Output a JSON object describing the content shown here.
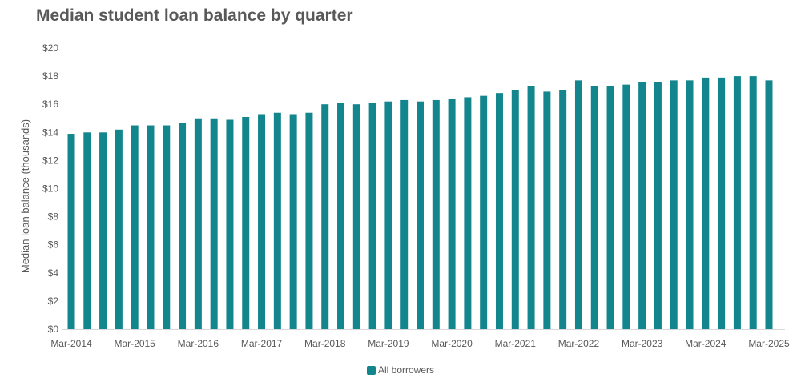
{
  "chart_data": {
    "type": "bar",
    "title": "Median student loan balance by quarter",
    "ylabel": "Median loan balance (thousands)",
    "xlabel": "",
    "ylim": [
      0,
      20
    ],
    "y_ticks": [
      "$0",
      "$2",
      "$4",
      "$6",
      "$8",
      "$10",
      "$12",
      "$14",
      "$16",
      "$18",
      "$20"
    ],
    "x_tick_labels": [
      "Mar-2014",
      "Mar-2015",
      "Mar-2016",
      "Mar-2017",
      "Mar-2018",
      "Mar-2019",
      "Mar-2020",
      "Mar-2021",
      "Mar-2022",
      "Mar-2023",
      "Mar-2024",
      "Mar-2025"
    ],
    "grid": false,
    "legend_position": "bottom",
    "series": [
      {
        "name": "All borrowers",
        "color": "#12868c",
        "values": [
          13.9,
          14.0,
          14.0,
          14.2,
          14.5,
          14.5,
          14.5,
          14.7,
          15.0,
          15.0,
          14.9,
          15.1,
          15.3,
          15.4,
          15.3,
          15.4,
          16.0,
          16.1,
          16.0,
          16.1,
          16.2,
          16.3,
          16.2,
          16.3,
          16.4,
          16.5,
          16.6,
          16.8,
          17.0,
          17.3,
          16.9,
          17.0,
          17.7,
          17.3,
          17.3,
          17.4,
          17.6,
          17.6,
          17.7,
          17.7,
          17.9,
          17.9,
          18.0,
          18.0,
          17.7
        ]
      }
    ]
  }
}
